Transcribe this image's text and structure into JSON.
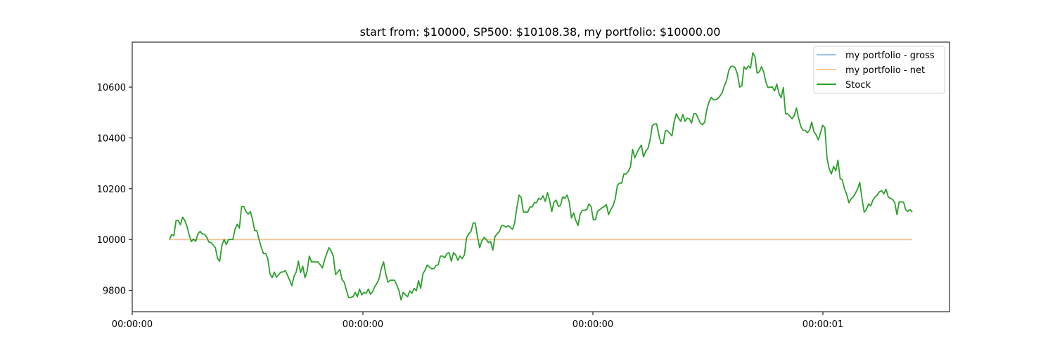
{
  "chart_data": {
    "type": "line",
    "title": "start from: $10000, SP500: $10108.38, my portfolio: $10000.00",
    "xlabel": "",
    "ylabel": "",
    "x_tick_labels": [
      "00:00:00",
      "00:00:00",
      "00:00:00",
      "00:00:01"
    ],
    "y_ticks": [
      9800,
      10000,
      10200,
      10400,
      10600
    ],
    "ylim": [
      9716,
      10777
    ],
    "grid": false,
    "legend_position": "top-right",
    "series": [
      {
        "name": "my portfolio - gross",
        "color": "#9ec3e2",
        "values": [
          10000,
          10000
        ]
      },
      {
        "name": "my portfolio - net",
        "color": "#fcc79a",
        "values": [
          10000,
          10000
        ]
      },
      {
        "name": "Stock",
        "color": "#2ca02c",
        "values": [
          10000,
          10020,
          10015,
          10075,
          10075,
          10058,
          10088,
          10075,
          10052,
          10018,
          9992,
          10002,
          9993,
          10022,
          10032,
          10022,
          10021,
          10010,
          9990,
          9988,
          9978,
          9968,
          9925,
          9915,
          9978,
          10000,
          9980,
          10000,
          10000,
          10000,
          10041,
          10060,
          10045,
          10130,
          10130,
          10110,
          10100,
          10110,
          10080,
          10035,
          10035,
          10000,
          9970,
          9945,
          9945,
          9925,
          9865,
          9850,
          9872,
          9852,
          9862,
          9872,
          9872,
          9878,
          9860,
          9840,
          9818,
          9855,
          9872,
          9915,
          9870,
          9895,
          9850,
          9875,
          9935,
          9912,
          9912,
          9912,
          9912,
          9900,
          9888,
          9920,
          9945,
          9968,
          9955,
          9935,
          9862,
          9872,
          9882,
          9842,
          9832,
          9800,
          9772,
          9772,
          9775,
          9792,
          9775,
          9805,
          9782,
          9792,
          9788,
          9805,
          9785,
          9795,
          9815,
          9828,
          9848,
          9888,
          9912,
          9865,
          9832,
          9840,
          9840,
          9840,
          9822,
          9800,
          9762,
          9792,
          9782,
          9775,
          9798,
          9788,
          9808,
          9798,
          9838,
          9808,
          9865,
          9880,
          9900,
          9892,
          9885,
          9885,
          9898,
          9900,
          9935,
          9935,
          9928,
          9945,
          9948,
          9915,
          9948,
          9940,
          9918,
          9935,
          9925,
          9940,
          10008,
          10022,
          10032,
          10065,
          10065,
          10010,
          9968,
          9995,
          10008,
          10000,
          9988,
          9992,
          9958,
          10012,
          10022,
          10032,
          10055,
          10055,
          10048,
          10055,
          10048,
          10040,
          10065,
          10125,
          10175,
          10165,
          10108,
          10108,
          10108,
          10128,
          10128,
          10145,
          10145,
          10162,
          10158,
          10172,
          10150,
          10185,
          10155,
          10110,
          10148,
          10155,
          10130,
          10135,
          10168,
          10162,
          10175,
          10148,
          10085,
          10105,
          10075,
          10055,
          10100,
          10115,
          10115,
          10118,
          10140,
          10130,
          10078,
          10078,
          10112,
          10118,
          10125,
          10130,
          10138,
          10098,
          10118,
          10132,
          10158,
          10212,
          10222,
          10222,
          10258,
          10258,
          10268,
          10285,
          10355,
          10322,
          10342,
          10358,
          10372,
          10325,
          10348,
          10358,
          10392,
          10448,
          10455,
          10455,
          10412,
          10378,
          10378,
          10428,
          10428,
          10418,
          10408,
          10462,
          10495,
          10478,
          10465,
          10492,
          10465,
          10478,
          10475,
          10458,
          10495,
          10495,
          10478,
          10458,
          10452,
          10462,
          10512,
          10542,
          10560,
          10550,
          10550,
          10555,
          10565,
          10578,
          10605,
          10625,
          10665,
          10682,
          10682,
          10675,
          10650,
          10600,
          10605,
          10680,
          10670,
          10683,
          10675,
          10735,
          10720,
          10655,
          10660,
          10680,
          10660,
          10620,
          10598,
          10600,
          10600,
          10585,
          10612,
          10575,
          10558,
          10598,
          10495,
          10495,
          10485,
          10475,
          10488,
          10518,
          10478,
          10445,
          10430,
          10430,
          10420,
          10430,
          10462,
          10425,
          10412,
          10392,
          10420,
          10450,
          10440,
          10320,
          10278,
          10258,
          10288,
          10270,
          10312,
          10240,
          10235,
          10200,
          10178,
          10145,
          10160,
          10168,
          10182,
          10200,
          10225,
          10162,
          10108,
          10118,
          10140,
          10132,
          10155,
          10168,
          10175,
          10188,
          10192,
          10180,
          10198,
          10168,
          10162,
          10158,
          10145,
          10098,
          10148,
          10148,
          10148,
          10118,
          10110,
          10118,
          10108
        ]
      }
    ]
  }
}
